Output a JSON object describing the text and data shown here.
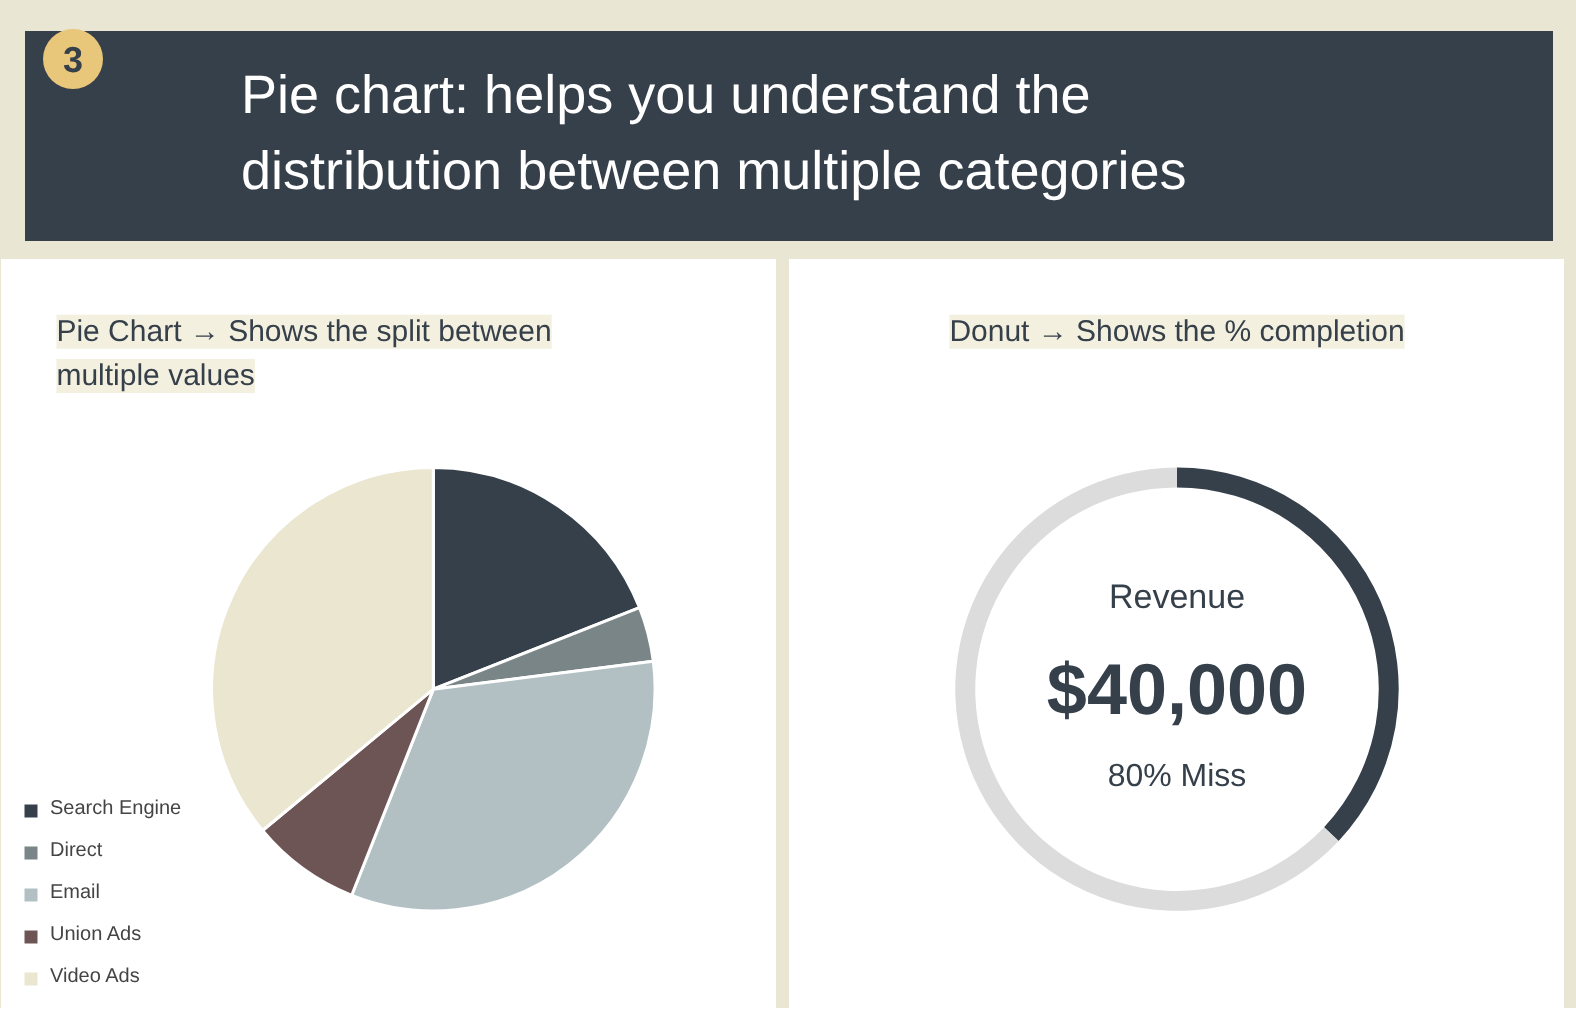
{
  "chart_data": [
    {
      "type": "pie",
      "title": "Pie chart: helps you understand the distribution between multiple categories",
      "subtitle": "Pie Chart → Shows the split between multiple values",
      "annotations": [
        "3"
      ],
      "categories": [
        "Search Engine",
        "Direct",
        "Email",
        "Union Ads",
        "Video Ads"
      ],
      "values": [
        19,
        4,
        33,
        8,
        36
      ],
      "colors": [
        "#36404a",
        "#7a8588",
        "#b2c0c3",
        "#6e5555",
        "#ebe6cf"
      ],
      "legend": "bottom left"
    },
    {
      "type": "donut",
      "title": "Donut → Shows the % completion",
      "annotations": [
        "Revenue",
        "$40,000",
        "80% Miss"
      ],
      "categories": [
        null,
        null
      ],
      "values": [
        37,
        63
      ],
      "colors": [
        "#36404a",
        "#dcdcdc"
      ]
    }
  ]
}
